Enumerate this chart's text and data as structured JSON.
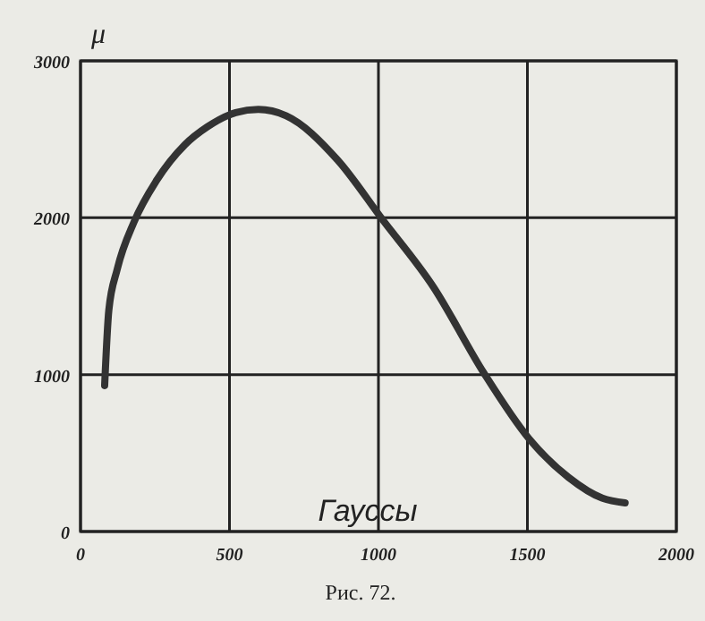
{
  "chart_data": {
    "type": "line",
    "xlabel": "Гауссы",
    "ylabel": "μ",
    "annotations": [
      "Рис. 72."
    ],
    "x": [
      81,
      95,
      123,
      180,
      256,
      350,
      426,
      521,
      597,
      690,
      862,
      1013,
      1184,
      1354,
      1506,
      1638,
      1752,
      1828
    ],
    "series": [
      {
        "color": "#333333",
        "values": [
          930,
          1410,
          1670,
          1975,
          2240,
          2465,
          2580,
          2670,
          2690,
          2650,
          2370,
          1990,
          1560,
          1010,
          590,
          345,
          212,
          182
        ]
      }
    ],
    "xlim": [
      0,
      2000
    ],
    "xticks": [
      0,
      500,
      1000,
      1500,
      2000
    ],
    "ylim": [
      0,
      3000
    ],
    "yticks": [
      0,
      1000,
      2000,
      3000
    ],
    "grid": true,
    "marker": "none",
    "line_style": "solid"
  }
}
